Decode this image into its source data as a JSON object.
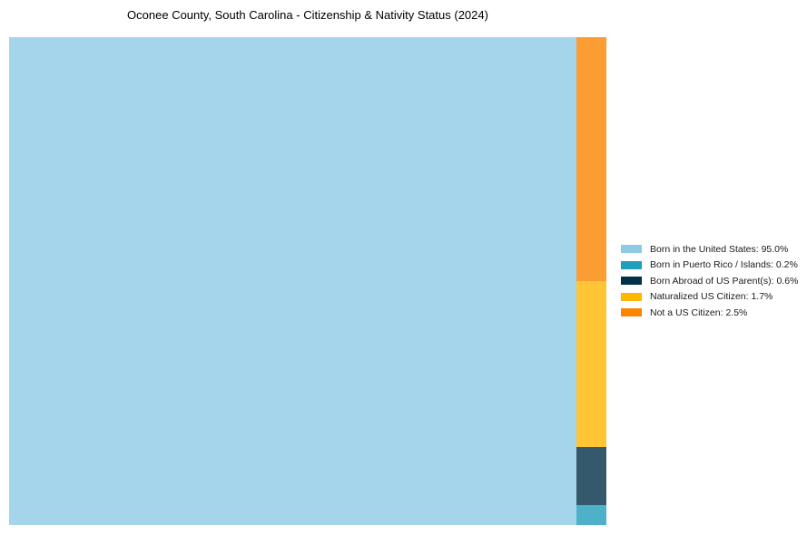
{
  "title": "Oconee County, South Carolina - Citizenship & Nativity Status (2024)",
  "chart_data": {
    "type": "treemap",
    "title": "Oconee County, South Carolina - Citizenship & Nativity Status (2024)",
    "series": [
      {
        "name": "Born in the United States",
        "value": 95.0,
        "pct_label": "95.0%",
        "color": "#8ECAE6"
      },
      {
        "name": "Born in Puerto Rico / Islands",
        "value": 0.2,
        "pct_label": "0.2%",
        "color": "#219EBC"
      },
      {
        "name": "Born Abroad of US Parent(s)",
        "value": 0.6,
        "pct_label": "0.6%",
        "color": "#023047"
      },
      {
        "name": "Naturalized US Citizen",
        "value": 1.7,
        "pct_label": "1.7%",
        "color": "#FFB703"
      },
      {
        "name": "Not a US Citizen",
        "value": 2.5,
        "pct_label": "2.5%",
        "color": "#FB8500"
      }
    ],
    "tile_alpha": 0.8,
    "layout": {
      "main_tile": "Born in the United States",
      "side_column": "right",
      "side_column_order": "descending-top-to-bottom",
      "labels_on_tiles": false,
      "legend_position": "center right",
      "grid": false
    }
  },
  "legend": {
    "items": [
      {
        "label": "Born in the United States: 95.0%",
        "color": "#8ECAE6"
      },
      {
        "label": "Born in Puerto Rico / Islands: 0.2%",
        "color": "#219EBC"
      },
      {
        "label": "Born Abroad of US Parent(s): 0.6%",
        "color": "#023047"
      },
      {
        "label": "Naturalized US Citizen: 1.7%",
        "color": "#FFB703"
      },
      {
        "label": "Not a US Citizen: 2.5%",
        "color": "#FB8500"
      }
    ]
  }
}
